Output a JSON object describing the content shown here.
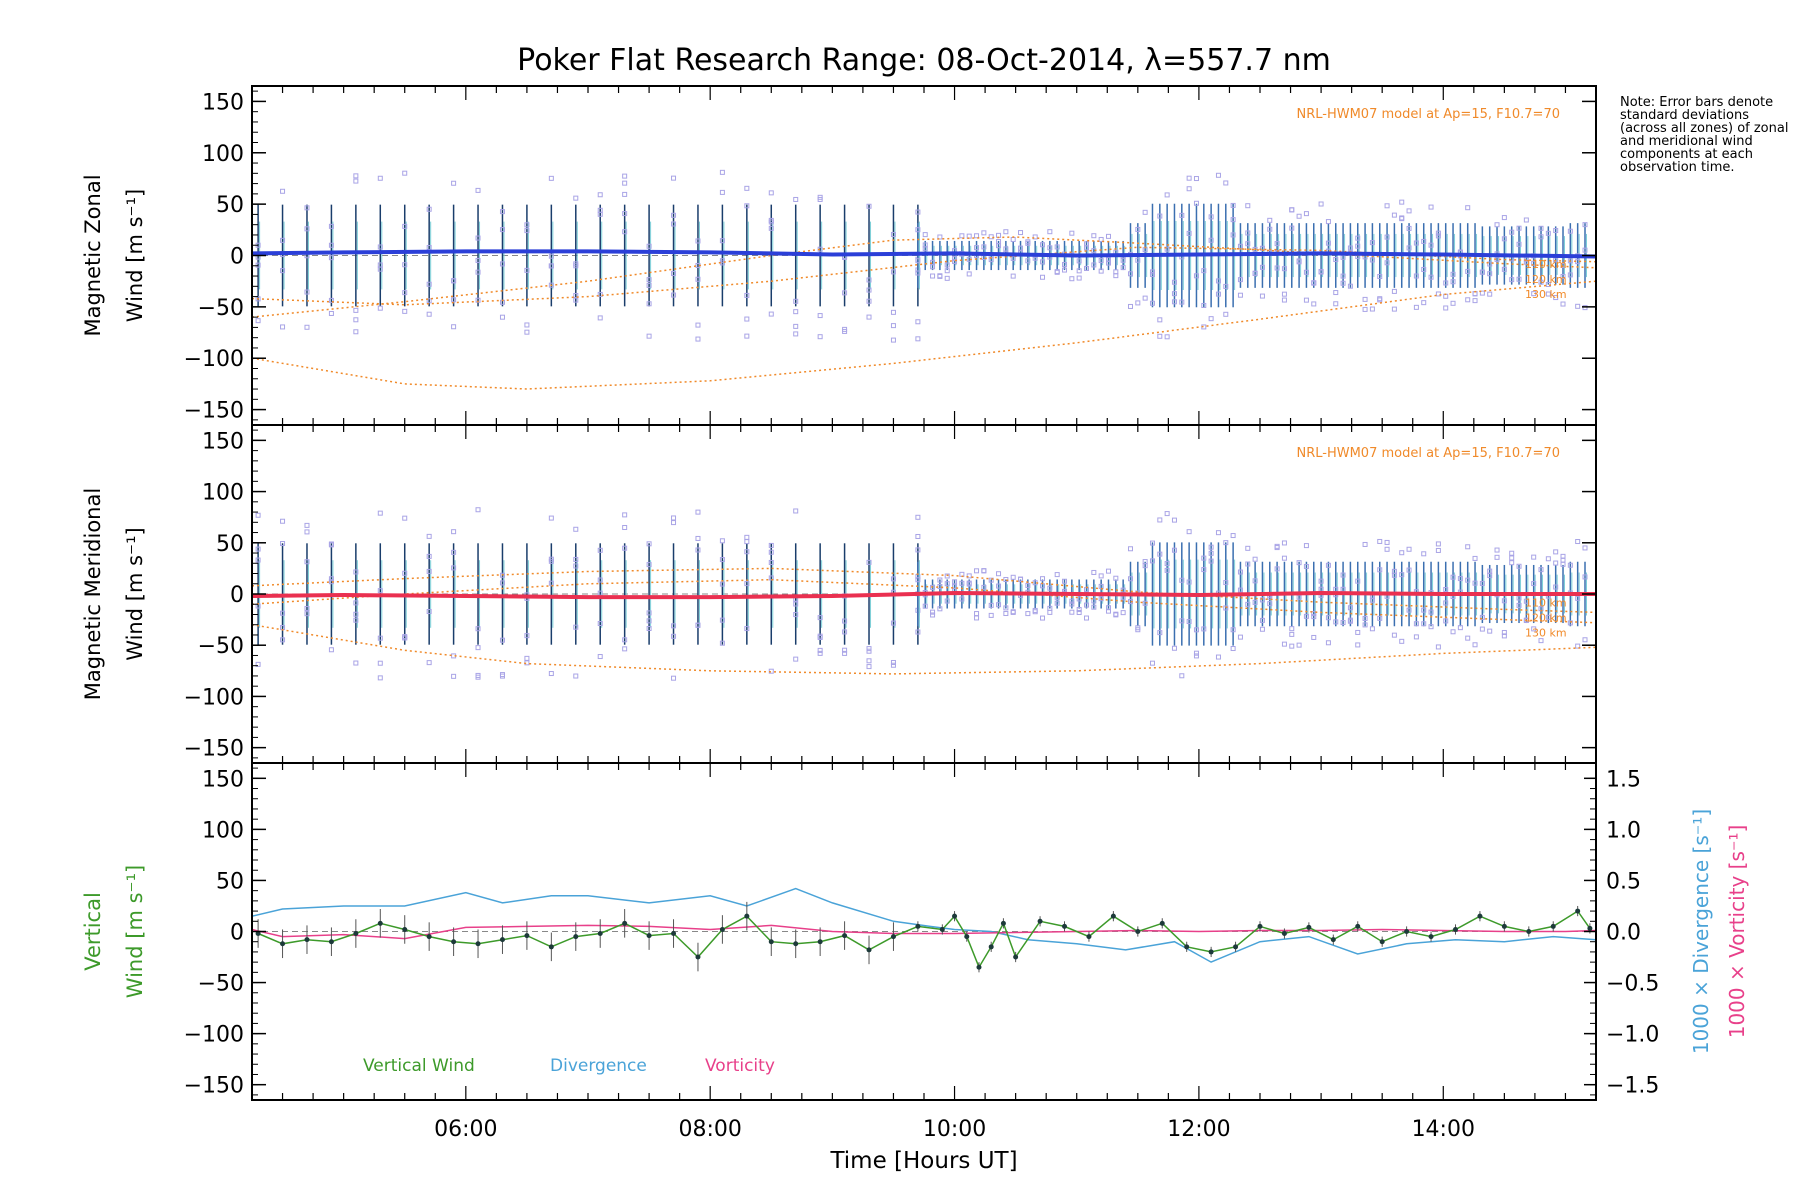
{
  "chart_data": {
    "type": "line",
    "title": "Poker Flat Research Range: 08-Oct-2014, λ=557.7 nm",
    "note": "Note: Error bars denote standard deviations (across all zones) of zonal and meridional wind components at each observation time.",
    "xlabel": "Time [Hours UT]",
    "xlim": [
      4.25,
      15.25
    ],
    "xticks": [
      "06:00",
      "08:00",
      "10:00",
      "12:00",
      "14:00"
    ],
    "xtick_values": [
      6,
      8,
      10,
      12,
      14
    ],
    "colors": {
      "zonal": "#2b3fd8",
      "meridional": "#ea3050",
      "vertical": "#3d9a2a",
      "divergence": "#4aa3d8",
      "vorticity": "#e8408a",
      "model": "#f08a2a",
      "scatter": "#a9a4e6"
    },
    "panels": [
      {
        "id": "zonal",
        "ylabel_lines": [
          "Magnetic Zonal",
          "Wind [m s⁻¹]"
        ],
        "ylim": [
          -165,
          165
        ],
        "yticks": [
          150,
          100,
          50,
          0,
          -50,
          -100,
          -150
        ],
        "model_label": "NRL-HWM07 model at Ap=15, F10.7=70",
        "model_heights": [
          "110 km",
          "120 km",
          "130 km"
        ],
        "model_curves": [
          {
            "name": "110 km",
            "x": [
              4.25,
              5.5,
              7,
              8.5,
              10,
              11.5,
              13,
              14.5,
              15.25
            ],
            "y": [
              -42,
              -48,
              -40,
              -25,
              -5,
              8,
              5,
              -4,
              -6
            ]
          },
          {
            "name": "120 km",
            "x": [
              4.25,
              5.5,
              7,
              8.5,
              9.5,
              10.5,
              11.5,
              13,
              14.5,
              15.25
            ],
            "y": [
              -60,
              -45,
              -25,
              0,
              15,
              18,
              12,
              2,
              -8,
              -12
            ]
          },
          {
            "name": "130 km",
            "x": [
              4.25,
              5.5,
              6.5,
              8,
              9.5,
              11,
              12.5,
              14,
              15.25
            ],
            "y": [
              -100,
              -125,
              -130,
              -122,
              -105,
              -85,
              -62,
              -38,
              -25
            ]
          }
        ],
        "series": [
          {
            "name": "Zonal wind",
            "x": [
              4.25,
              5,
              6,
              7,
              8,
              9,
              10,
              11,
              12,
              13,
              14,
              15.25
            ],
            "y": [
              2,
              3,
              4,
              4,
              3,
              1,
              2,
              0,
              1,
              2,
              1,
              -1
            ]
          }
        ]
      },
      {
        "id": "meridional",
        "ylabel_lines": [
          "Magnetic Meridional",
          "Wind [m s⁻¹]"
        ],
        "ylim": [
          -165,
          165
        ],
        "yticks": [
          150,
          100,
          50,
          0,
          -50,
          -100,
          -150
        ],
        "model_label": "NRL-HWM07 model at Ap=15, F10.7=70",
        "model_heights": [
          "110 km",
          "120 km",
          "130 km"
        ],
        "model_curves": [
          {
            "name": "110 km",
            "x": [
              4.25,
              5.5,
              7,
              8.5,
              10,
              11.5,
              13,
              14.5,
              15.25
            ],
            "y": [
              8,
              15,
              22,
              25,
              18,
              2,
              -8,
              -15,
              -18
            ]
          },
          {
            "name": "120 km",
            "x": [
              4.25,
              5.5,
              7,
              8.5,
              10,
              11.5,
              13,
              14.5,
              15.25
            ],
            "y": [
              -10,
              0,
              10,
              14,
              6,
              -8,
              -18,
              -25,
              -28
            ]
          },
          {
            "name": "130 km",
            "x": [
              4.25,
              5.5,
              6.5,
              8,
              9.5,
              11,
              12.5,
              14,
              15.25
            ],
            "y": [
              -30,
              -55,
              -68,
              -75,
              -78,
              -75,
              -68,
              -58,
              -52
            ]
          }
        ],
        "series": [
          {
            "name": "Meridional wind",
            "x": [
              4.25,
              5,
              6,
              7,
              8,
              9,
              10,
              11,
              12,
              13,
              14,
              15.25
            ],
            "y": [
              -2,
              -1,
              -2,
              -3,
              -3,
              -2,
              1,
              0,
              -1,
              1,
              0,
              0
            ]
          }
        ]
      },
      {
        "id": "vertical",
        "ylabel_lines": [
          "Vertical",
          "Wind [m s⁻¹]"
        ],
        "ylim": [
          -165,
          165
        ],
        "yticks": [
          150,
          100,
          50,
          0,
          -50,
          -100,
          -150
        ],
        "y2lim": [
          -1.65,
          1.65
        ],
        "y2ticks": [
          "1.5",
          "1.0",
          "0.5",
          "0.0",
          "−0.5",
          "−1.0",
          "−1.5"
        ],
        "y2tick_values": [
          1.5,
          1.0,
          0.5,
          0.0,
          -0.5,
          -1.0,
          -1.5
        ],
        "y2label_divergence": "1000 × Divergence [s⁻¹]",
        "y2label_vorticity": "1000 × Vorticity [s⁻¹]",
        "legend": [
          "Vertical Wind",
          "Divergence",
          "Vorticity"
        ],
        "series": [
          {
            "name": "Vertical Wind",
            "x": [
              4.3,
              4.5,
              4.7,
              4.9,
              5.1,
              5.3,
              5.5,
              5.7,
              5.9,
              6.1,
              6.3,
              6.5,
              6.7,
              6.9,
              7.1,
              7.3,
              7.5,
              7.7,
              7.9,
              8.1,
              8.3,
              8.5,
              8.7,
              8.9,
              9.1,
              9.3,
              9.5,
              9.7,
              9.9,
              10.0,
              10.1,
              10.2,
              10.3,
              10.4,
              10.5,
              10.7,
              10.9,
              11.1,
              11.3,
              11.5,
              11.7,
              11.9,
              12.1,
              12.3,
              12.5,
              12.7,
              12.9,
              13.1,
              13.3,
              13.5,
              13.7,
              13.9,
              14.1,
              14.3,
              14.5,
              14.7,
              14.9,
              15.1,
              15.2
            ],
            "y": [
              -2,
              -12,
              -8,
              -10,
              -2,
              8,
              2,
              -5,
              -10,
              -12,
              -8,
              -4,
              -15,
              -5,
              -2,
              8,
              -4,
              -2,
              -25,
              2,
              15,
              -10,
              -12,
              -10,
              -4,
              -18,
              -5,
              5,
              2,
              15,
              -5,
              -35,
              -15,
              8,
              -25,
              10,
              5,
              -5,
              15,
              0,
              8,
              -15,
              -20,
              -15,
              5,
              -2,
              4,
              -8,
              5,
              -10,
              0,
              -5,
              2,
              15,
              5,
              0,
              5,
              20,
              3
            ]
          },
          {
            "name": "Divergence",
            "x": [
              4.25,
              4.5,
              5,
              5.5,
              6,
              6.3,
              6.7,
              7,
              7.5,
              8,
              8.3,
              8.7,
              9,
              9.5,
              9.8,
              10,
              10.3,
              10.6,
              11,
              11.4,
              11.8,
              12.1,
              12.5,
              12.9,
              13.3,
              13.7,
              14.1,
              14.5,
              14.9,
              15.25
            ],
            "y": [
              0.15,
              0.22,
              0.25,
              0.25,
              0.38,
              0.28,
              0.35,
              0.35,
              0.28,
              0.35,
              0.25,
              0.42,
              0.28,
              0.1,
              0.05,
              0.02,
              0.0,
              -0.08,
              -0.12,
              -0.18,
              -0.1,
              -0.3,
              -0.1,
              -0.05,
              -0.22,
              -0.12,
              -0.08,
              -0.1,
              -0.05,
              -0.08
            ]
          },
          {
            "name": "Vorticity",
            "x": [
              4.25,
              4.5,
              5,
              5.5,
              6,
              6.5,
              7,
              7.5,
              8,
              8.5,
              9,
              9.5,
              10,
              10.5,
              11,
              11.5,
              12,
              12.5,
              13,
              13.5,
              14,
              14.5,
              15,
              15.25
            ],
            "y": [
              0.02,
              -0.05,
              -0.03,
              -0.07,
              0.04,
              0.05,
              0.06,
              0.05,
              0.02,
              0.06,
              0.0,
              -0.02,
              -0.02,
              -0.01,
              0.0,
              0.01,
              0.0,
              0.01,
              0.01,
              0.02,
              0.01,
              0.0,
              0.0,
              0.01
            ]
          }
        ]
      }
    ]
  }
}
